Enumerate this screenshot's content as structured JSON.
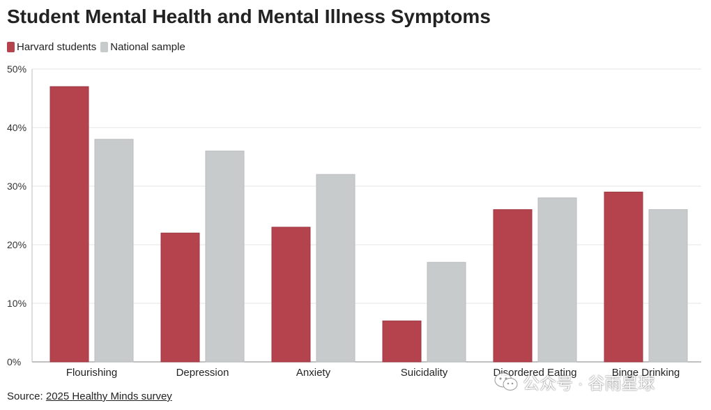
{
  "chart_data": {
    "type": "bar",
    "title": "Student Mental Health and Mental Illness Symptoms",
    "categories": [
      "Flourishing",
      "Depression",
      "Anxiety",
      "Suicidality",
      "Disordered Eating",
      "Binge Drinking"
    ],
    "series": [
      {
        "name": "Harvard students",
        "values": [
          47,
          22,
          23,
          7,
          26,
          29
        ],
        "color": "#b5434e"
      },
      {
        "name": "National sample",
        "values": [
          38,
          36,
          32,
          17,
          28,
          26
        ],
        "color": "#c8cbcc"
      }
    ],
    "ylim": [
      0,
      50
    ],
    "yticks": [
      "0%",
      "10%",
      "20%",
      "30%",
      "40%",
      "50%"
    ],
    "ytick_values": [
      0,
      10,
      20,
      30,
      40,
      50
    ],
    "grid": true,
    "legend_position": "top-left"
  },
  "source": {
    "prefix": "Source: ",
    "link_text": "2025 Healthy Minds survey"
  },
  "watermark": {
    "text": "公众号 · 谷雨星球",
    "icon": "wechat-icon"
  }
}
